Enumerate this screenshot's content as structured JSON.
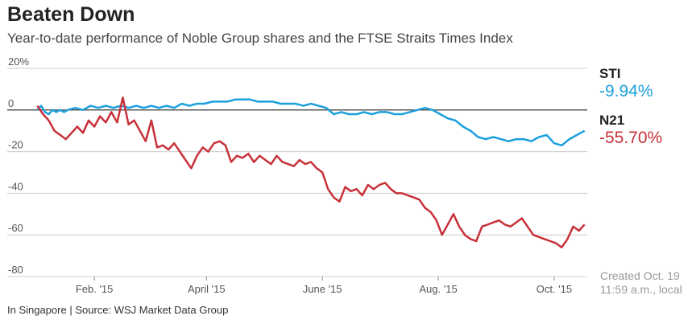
{
  "title": "Beaten Down",
  "subtitle": "Year-to-date performance of Noble Group shares and the FTSE Straits Times Index",
  "legend": [
    {
      "name": "STI",
      "value": "-9.94%",
      "color": "#1ba0dc"
    },
    {
      "name": "N21",
      "value": "-55.70%",
      "color": "#c8313a"
    }
  ],
  "created": {
    "line1": "Created Oct. 19",
    "line2": "11:59 a.m., local"
  },
  "source": "In Singapore | Source: WSJ Market Data Group",
  "chart_data": {
    "type": "line",
    "title": "Beaten Down",
    "xlabel": "",
    "ylabel": "",
    "xlim": [
      1,
      291
    ],
    "ylim": [
      -80,
      20
    ],
    "y_ticks": [
      {
        "value": 20,
        "label": "20%"
      },
      {
        "value": 0,
        "label": "0"
      },
      {
        "value": -20,
        "label": "-20"
      },
      {
        "value": -40,
        "label": "-40"
      },
      {
        "value": -60,
        "label": "-60"
      },
      {
        "value": -80,
        "label": "-80"
      }
    ],
    "x_ticks": [
      {
        "value": 32,
        "label": "Feb. '15"
      },
      {
        "value": 91,
        "label": "April '15"
      },
      {
        "value": 152,
        "label": "June '15"
      },
      {
        "value": 213,
        "label": "Aug. '15"
      },
      {
        "value": 274,
        "label": "Oct. '15"
      }
    ],
    "series": [
      {
        "name": "STI",
        "color": "#1ba0dc",
        "x": [
          2,
          4,
          6,
          8,
          10,
          12,
          14,
          16,
          18,
          22,
          26,
          30,
          34,
          38,
          42,
          46,
          50,
          54,
          58,
          62,
          66,
          70,
          74,
          78,
          82,
          86,
          90,
          94,
          98,
          102,
          106,
          110,
          114,
          118,
          122,
          126,
          130,
          134,
          138,
          142,
          146,
          150,
          154,
          158,
          162,
          166,
          170,
          174,
          178,
          182,
          186,
          190,
          194,
          198,
          202,
          206,
          210,
          214,
          218,
          222,
          226,
          230,
          234,
          238,
          242,
          246,
          250,
          254,
          258,
          262,
          266,
          270,
          274,
          278,
          282,
          286,
          290
        ],
        "values": [
          0,
          2,
          -1,
          -2,
          0,
          -1,
          0,
          -1,
          0,
          1,
          0,
          2,
          1,
          2,
          1,
          2,
          1,
          2,
          1,
          2,
          1,
          2,
          1,
          3,
          2,
          3,
          3,
          4,
          4,
          4,
          5,
          5,
          5,
          4,
          4,
          4,
          3,
          3,
          3,
          2,
          3,
          2,
          1,
          -2,
          -1,
          -2,
          -2,
          -1,
          -2,
          -1,
          -1,
          -2,
          -2,
          -1,
          0,
          1,
          0,
          -2,
          -4,
          -5,
          -8,
          -10,
          -13,
          -14,
          -13,
          -14,
          -15,
          -14,
          -14,
          -15,
          -13,
          -12,
          -16,
          -17,
          -14,
          -12,
          -10
        ]
      },
      {
        "name": "N21",
        "color": "#c8313a",
        "x": [
          2,
          5,
          8,
          11,
          14,
          17,
          20,
          23,
          26,
          29,
          32,
          35,
          38,
          41,
          44,
          47,
          50,
          53,
          56,
          59,
          62,
          65,
          68,
          71,
          74,
          77,
          80,
          83,
          86,
          89,
          92,
          95,
          98,
          101,
          104,
          107,
          110,
          113,
          116,
          119,
          122,
          125,
          128,
          131,
          134,
          137,
          140,
          143,
          146,
          149,
          152,
          155,
          158,
          161,
          164,
          167,
          170,
          173,
          176,
          179,
          182,
          185,
          188,
          191,
          194,
          197,
          200,
          203,
          206,
          209,
          212,
          215,
          218,
          221,
          224,
          227,
          230,
          233,
          236,
          239,
          242,
          245,
          248,
          251,
          254,
          257,
          260,
          263,
          266,
          269,
          272,
          275,
          278,
          281,
          284,
          287,
          290
        ],
        "values": [
          2,
          -2,
          -5,
          -10,
          -12,
          -14,
          -11,
          -8,
          -11,
          -5,
          -8,
          -3,
          -6,
          -1,
          -6,
          6,
          -7,
          -5,
          -10,
          -15,
          -5,
          -18,
          -17,
          -19,
          -16,
          -20,
          -24,
          -28,
          -22,
          -18,
          -20,
          -16,
          -15,
          -17,
          -25,
          -22,
          -23,
          -21,
          -25,
          -22,
          -24,
          -26,
          -22,
          -25,
          -26,
          -27,
          -24,
          -26,
          -25,
          -28,
          -30,
          -38,
          -42,
          -44,
          -37,
          -39,
          -38,
          -41,
          -36,
          -38,
          -36,
          -35,
          -38,
          -40,
          -40,
          -41,
          -42,
          -43,
          -47,
          -49,
          -53,
          -60,
          -55,
          -50,
          -56,
          -60,
          -62,
          -63,
          -56,
          -55,
          -54,
          -53,
          -55,
          -56,
          -54,
          -52,
          -56,
          -60,
          -61,
          -62,
          -63,
          -64,
          -66,
          -62,
          -56,
          -58,
          -55
        ]
      }
    ]
  }
}
